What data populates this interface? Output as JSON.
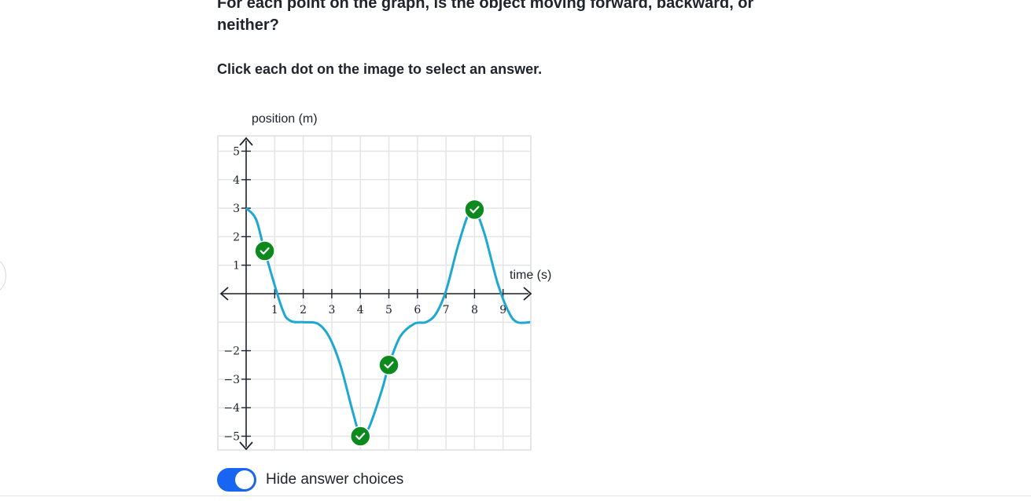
{
  "question": {
    "text": "For each point on the graph, is the object moving forward, backward, or neither?"
  },
  "instruction": "Click each dot on the image to select an answer.",
  "graph": {
    "y_axis_label": "position (m)",
    "x_axis_label": "time (s)",
    "x_ticks": [
      "1",
      "2",
      "3",
      "4",
      "5",
      "6",
      "7",
      "8",
      "9"
    ],
    "y_ticks": [
      "5",
      "4",
      "3",
      "2",
      "1",
      "−2",
      "−3",
      "−4",
      "−5"
    ],
    "curve_color": "#1ea8d1",
    "dot_color": "#0c8a1e",
    "dot_icon": "checkmark-icon",
    "points": [
      {
        "t": 0.65,
        "pos": 1.5
      },
      {
        "t": 4.0,
        "pos": -5.0
      },
      {
        "t": 5.0,
        "pos": -2.5
      },
      {
        "t": 8.0,
        "pos": 2.95
      }
    ]
  },
  "controls": {
    "toggle_label": "Hide answer choices",
    "toggle_on": true,
    "toggle_color": "#1865f2"
  }
}
